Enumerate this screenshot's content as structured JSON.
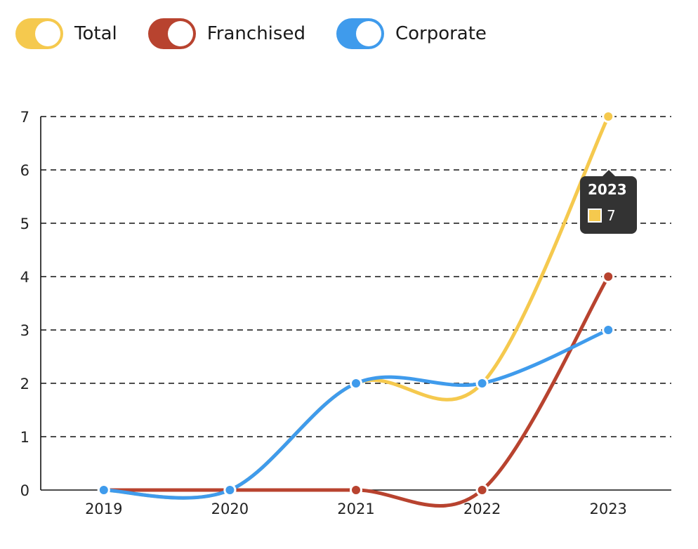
{
  "legend": [
    {
      "label": "Total",
      "color": "#f5c94e"
    },
    {
      "label": "Franchised",
      "color": "#b8432f"
    },
    {
      "label": "Corporate",
      "color": "#3f9bec"
    }
  ],
  "tooltip": {
    "title": "2023",
    "value": "7",
    "color": "#f5c94e"
  },
  "chart_data": {
    "type": "line",
    "categories": [
      "2019",
      "2020",
      "2021",
      "2022",
      "2023"
    ],
    "series": [
      {
        "name": "Total",
        "values": [
          0,
          0,
          2,
          2,
          7
        ],
        "color": "#f5c94e"
      },
      {
        "name": "Franchised",
        "values": [
          0,
          0,
          0,
          0,
          4
        ],
        "color": "#b8432f"
      },
      {
        "name": "Corporate",
        "values": [
          0,
          0,
          2,
          2,
          3
        ],
        "color": "#3f9bec"
      }
    ],
    "ylim": [
      0,
      7
    ],
    "yticks": [
      "0",
      "1",
      "2",
      "3",
      "4",
      "5",
      "6",
      "7"
    ],
    "grid": true,
    "legend_position": "top-left"
  }
}
